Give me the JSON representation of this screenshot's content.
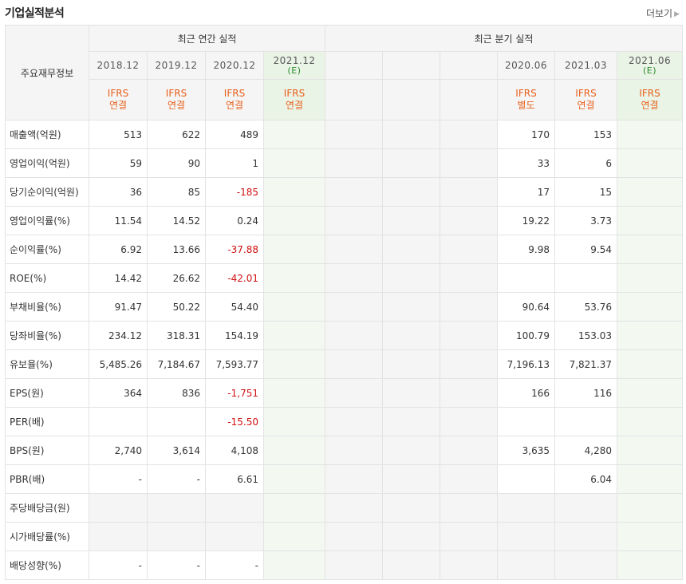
{
  "header": {
    "title": "기업실적분석",
    "more_label": "더보기"
  },
  "table": {
    "label_header": "주요재무정보",
    "annual_group": "최근 연간 실적",
    "quarter_group": "최근 분기 실적",
    "annual_dates": [
      {
        "date": "2018.12",
        "est": ""
      },
      {
        "date": "2019.12",
        "est": ""
      },
      {
        "date": "2020.12",
        "est": ""
      },
      {
        "date": "2021.12",
        "est": "(E)"
      }
    ],
    "quarter_dates": [
      {
        "date": "",
        "est": ""
      },
      {
        "date": "",
        "est": ""
      },
      {
        "date": "",
        "est": ""
      },
      {
        "date": "2020.06",
        "est": ""
      },
      {
        "date": "2021.03",
        "est": ""
      },
      {
        "date": "2021.06",
        "est": "(E)"
      }
    ],
    "annual_types": [
      {
        "std": "IFRS",
        "kind": "연결"
      },
      {
        "std": "IFRS",
        "kind": "연결"
      },
      {
        "std": "IFRS",
        "kind": "연결"
      },
      {
        "std": "IFRS",
        "kind": "연결"
      }
    ],
    "quarter_types": [
      {
        "std": "",
        "kind": ""
      },
      {
        "std": "",
        "kind": ""
      },
      {
        "std": "",
        "kind": ""
      },
      {
        "std": "IFRS",
        "kind": "별도"
      },
      {
        "std": "IFRS",
        "kind": "연결"
      },
      {
        "std": "IFRS",
        "kind": "연결"
      }
    ],
    "rows": [
      {
        "label": "매출액(억원)",
        "annual": [
          "513",
          "622",
          "489",
          ""
        ],
        "quarter": [
          "",
          "",
          "",
          "170",
          "153",
          ""
        ]
      },
      {
        "label": "영업이익(억원)",
        "annual": [
          "59",
          "90",
          "1",
          ""
        ],
        "quarter": [
          "",
          "",
          "",
          "33",
          "6",
          ""
        ]
      },
      {
        "label": "당기순이익(억원)",
        "annual": [
          "36",
          "85",
          "-185",
          ""
        ],
        "quarter": [
          "",
          "",
          "",
          "17",
          "15",
          ""
        ]
      },
      {
        "label": "영업이익률(%)",
        "annual": [
          "11.54",
          "14.52",
          "0.24",
          ""
        ],
        "quarter": [
          "",
          "",
          "",
          "19.22",
          "3.73",
          ""
        ]
      },
      {
        "label": "순이익률(%)",
        "annual": [
          "6.92",
          "13.66",
          "-37.88",
          ""
        ],
        "quarter": [
          "",
          "",
          "",
          "9.98",
          "9.54",
          ""
        ]
      },
      {
        "label": "ROE(%)",
        "annual": [
          "14.42",
          "26.62",
          "-42.01",
          ""
        ],
        "quarter": [
          "",
          "",
          "",
          "",
          "",
          ""
        ]
      },
      {
        "label": "부채비율(%)",
        "annual": [
          "91.47",
          "50.22",
          "54.40",
          ""
        ],
        "quarter": [
          "",
          "",
          "",
          "90.64",
          "53.76",
          ""
        ]
      },
      {
        "label": "당좌비율(%)",
        "annual": [
          "234.12",
          "318.31",
          "154.19",
          ""
        ],
        "quarter": [
          "",
          "",
          "",
          "100.79",
          "153.03",
          ""
        ]
      },
      {
        "label": "유보율(%)",
        "annual": [
          "5,485.26",
          "7,184.67",
          "7,593.77",
          ""
        ],
        "quarter": [
          "",
          "",
          "",
          "7,196.13",
          "7,821.37",
          ""
        ]
      },
      {
        "label": "EPS(원)",
        "annual": [
          "364",
          "836",
          "-1,751",
          ""
        ],
        "quarter": [
          "",
          "",
          "",
          "166",
          "116",
          ""
        ]
      },
      {
        "label": "PER(배)",
        "annual": [
          "",
          "",
          "-15.50",
          ""
        ],
        "quarter": [
          "",
          "",
          "",
          "",
          "",
          ""
        ]
      },
      {
        "label": "BPS(원)",
        "annual": [
          "2,740",
          "3,614",
          "4,108",
          ""
        ],
        "quarter": [
          "",
          "",
          "",
          "3,635",
          "4,280",
          ""
        ]
      },
      {
        "label": "PBR(배)",
        "annual": [
          "-",
          "-",
          "6.61",
          ""
        ],
        "quarter": [
          "",
          "",
          "",
          "",
          "6.04",
          ""
        ]
      },
      {
        "label": "주당배당금(원)",
        "annual": [
          "",
          "",
          "",
          ""
        ],
        "quarter": [
          "",
          "",
          "",
          "",
          "",
          ""
        ]
      },
      {
        "label": "시가배당률(%)",
        "annual": [
          "",
          "",
          "",
          ""
        ],
        "quarter": [
          "",
          "",
          "",
          "",
          "",
          ""
        ]
      },
      {
        "label": "배당성향(%)",
        "annual": [
          "-",
          "-",
          "-",
          ""
        ],
        "quarter": [
          "",
          "",
          "",
          "",
          "",
          ""
        ]
      }
    ]
  }
}
